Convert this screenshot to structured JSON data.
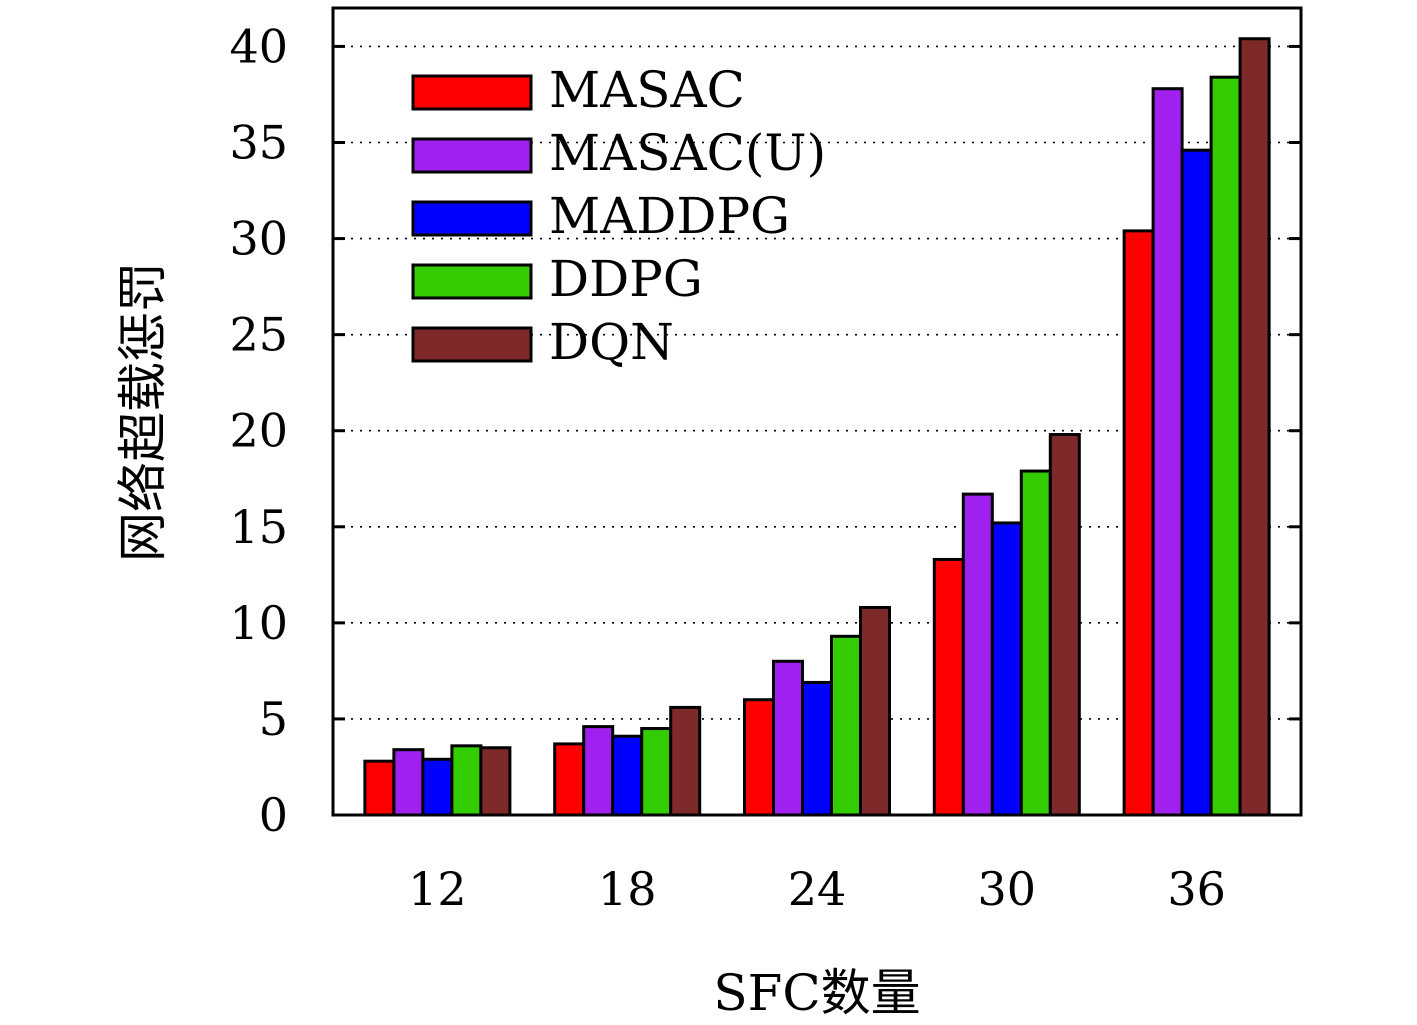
{
  "chart_data": {
    "type": "bar",
    "categories": [
      "12",
      "18",
      "24",
      "30",
      "36"
    ],
    "series": [
      {
        "name": "MASAC",
        "color": "#ff0000",
        "values": [
          2.8,
          3.7,
          6.0,
          13.3,
          30.4
        ]
      },
      {
        "name": "MASAC(U)",
        "color": "#a020f0",
        "values": [
          3.4,
          4.6,
          8.0,
          16.7,
          37.8
        ]
      },
      {
        "name": "MADDPG",
        "color": "#0000ff",
        "values": [
          2.9,
          4.1,
          6.9,
          15.2,
          34.6
        ]
      },
      {
        "name": "DDPG",
        "color": "#33cc00",
        "values": [
          3.6,
          4.5,
          9.3,
          17.9,
          38.4
        ]
      },
      {
        "name": "DQN",
        "color": "#7f2a2a",
        "values": [
          3.5,
          5.6,
          10.8,
          19.8,
          40.4
        ]
      }
    ],
    "xlabel": "SFC数量",
    "ylabel": "网络超载惩罚",
    "ylim": [
      0,
      42
    ],
    "yticks": [
      "0",
      "5",
      "10",
      "15",
      "20",
      "25",
      "30",
      "35",
      "40"
    ],
    "grid": "horizontal dotted",
    "legend_position": "top-left"
  }
}
